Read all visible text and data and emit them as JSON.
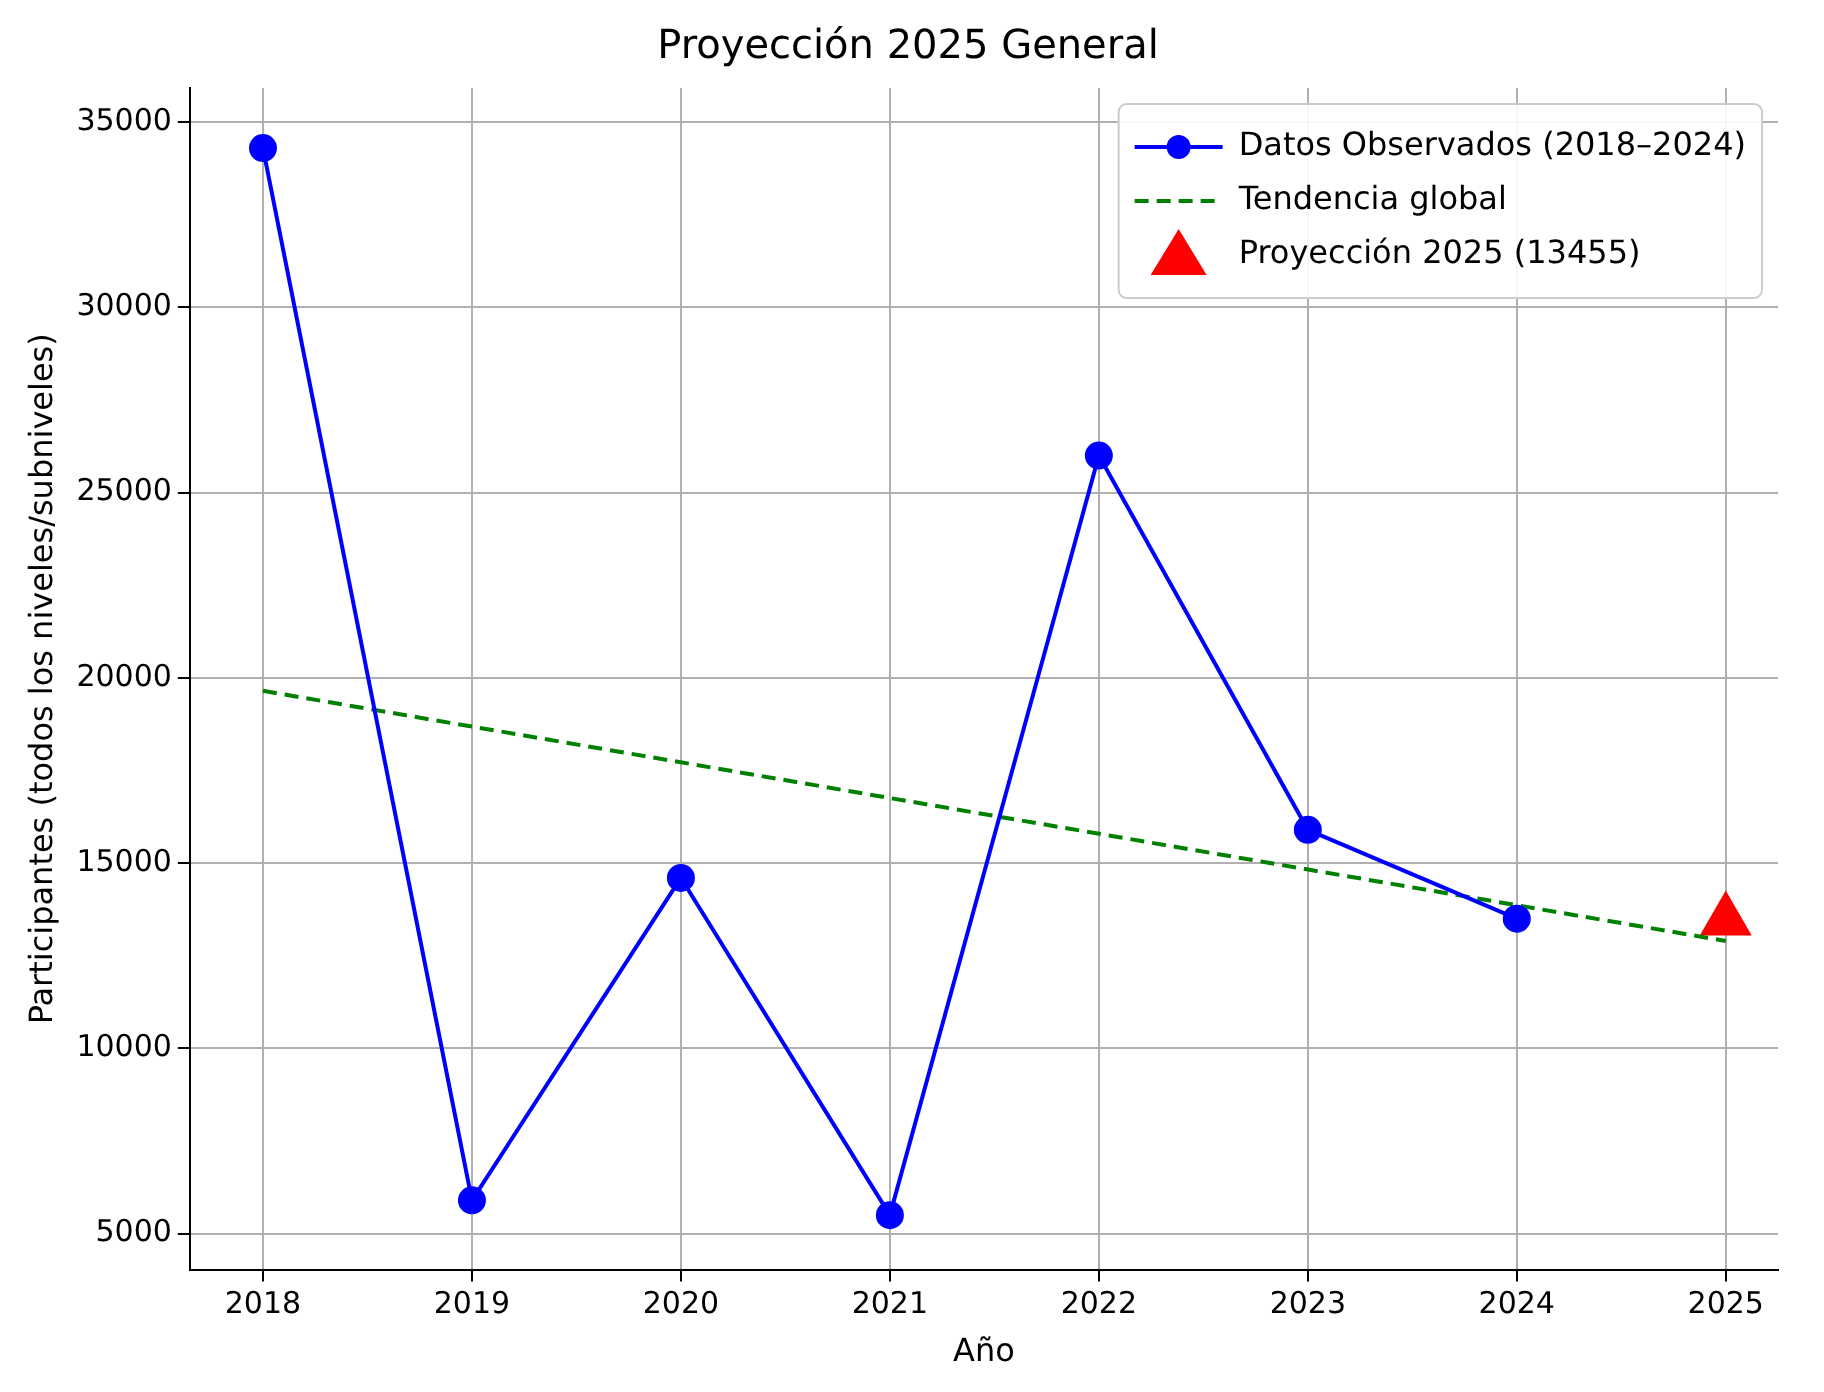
{
  "chart_data": {
    "type": "line",
    "title": "Proyección 2025 General",
    "xlabel": "Año",
    "ylabel": "Participantes (todos los niveles/subniveles)",
    "xlim": [
      2017.65,
      2025.25
    ],
    "xticks": [
      2018,
      2019,
      2020,
      2021,
      2022,
      2023,
      2024,
      2025
    ],
    "ylim": [
      4030,
      35920
    ],
    "yticks": [
      5000,
      10000,
      15000,
      20000,
      25000,
      30000,
      35000
    ],
    "grid": true,
    "legend": "top right",
    "series": [
      {
        "name": "Datos Observados (2018–2024)",
        "color": "#0000ff",
        "marker": "circle",
        "line_style": "solid",
        "x": [
          2018,
          2019,
          2020,
          2021,
          2022,
          2023,
          2024
        ],
        "values": [
          34300,
          5900,
          14600,
          5500,
          26000,
          15900,
          13500
        ]
      },
      {
        "name": "Tendencia global",
        "color": "#008000",
        "marker": "none",
        "line_style": "dashed",
        "x": [
          2018,
          2025
        ],
        "values": [
          19650,
          12900
        ]
      },
      {
        "name": "Proyección 2025 (13455)",
        "type": "scatter",
        "color": "#ff0000",
        "marker": "triangle",
        "x": [
          2025
        ],
        "values": [
          13455
        ]
      }
    ]
  }
}
